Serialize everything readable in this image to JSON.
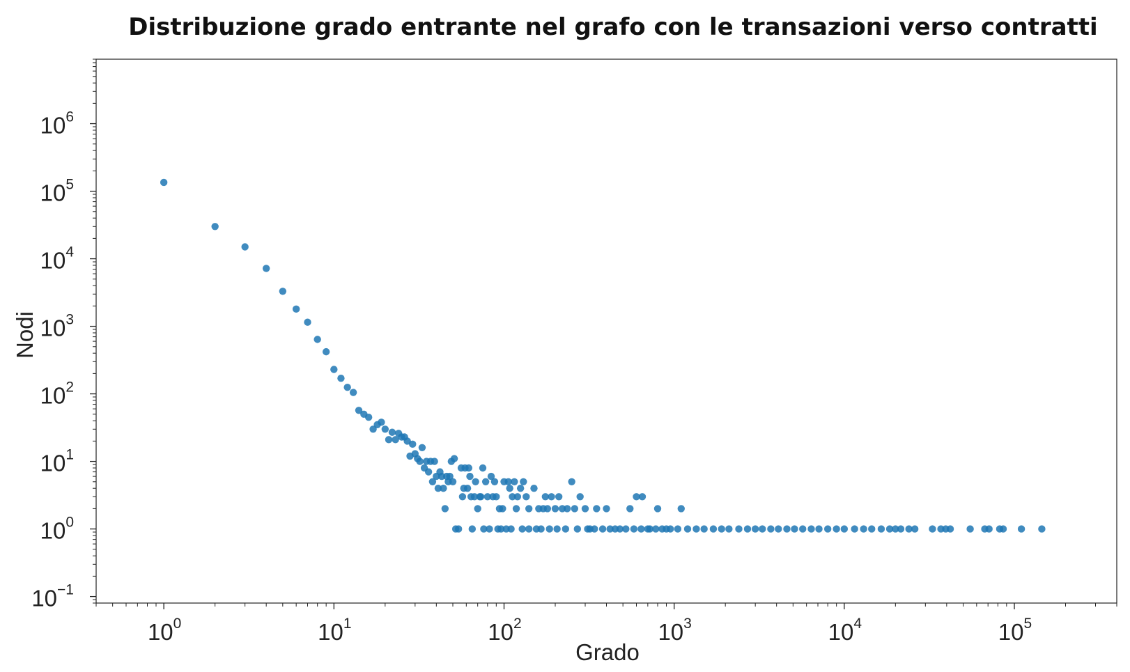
{
  "chart_data": {
    "type": "scatter",
    "title": "Distribuzione grado entrante nel grafo con le transazioni verso contratti",
    "xlabel": "Grado",
    "ylabel": "Nodi",
    "xscale": "log",
    "yscale": "log",
    "xlim": [
      0.4,
      400000
    ],
    "ylim": [
      0.08,
      9000000
    ],
    "xticks": [
      {
        "base": "10",
        "exp": "0",
        "value": 1
      },
      {
        "base": "10",
        "exp": "1",
        "value": 10
      },
      {
        "base": "10",
        "exp": "2",
        "value": 100
      },
      {
        "base": "10",
        "exp": "3",
        "value": 1000
      },
      {
        "base": "10",
        "exp": "4",
        "value": 10000
      },
      {
        "base": "10",
        "exp": "5",
        "value": 100000
      }
    ],
    "yticks": [
      {
        "base": "10",
        "exp": "−1",
        "value": 0.1
      },
      {
        "base": "10",
        "exp": "0",
        "value": 1
      },
      {
        "base": "10",
        "exp": "1",
        "value": 10
      },
      {
        "base": "10",
        "exp": "2",
        "value": 100
      },
      {
        "base": "10",
        "exp": "3",
        "value": 1000
      },
      {
        "base": "10",
        "exp": "4",
        "value": 10000
      },
      {
        "base": "10",
        "exp": "5",
        "value": 100000
      },
      {
        "base": "10",
        "exp": "6",
        "value": 1000000
      }
    ],
    "grid": false,
    "marker_color": "#1f77b4",
    "series": [
      {
        "points": [
          [
            1,
            135000
          ],
          [
            2,
            30000
          ],
          [
            3,
            15000
          ],
          [
            4,
            7200
          ],
          [
            5,
            3300
          ],
          [
            6,
            1800
          ],
          [
            7,
            1150
          ],
          [
            8,
            640
          ],
          [
            9,
            420
          ],
          [
            10,
            230
          ],
          [
            11,
            170
          ],
          [
            12,
            125
          ],
          [
            13,
            105
          ],
          [
            14,
            57
          ],
          [
            15,
            50
          ],
          [
            16,
            45
          ],
          [
            17,
            30
          ],
          [
            18,
            35
          ],
          [
            19,
            38
          ],
          [
            20,
            30
          ],
          [
            21,
            21
          ],
          [
            22,
            27
          ],
          [
            23,
            21
          ],
          [
            24,
            26
          ],
          [
            25,
            23
          ],
          [
            26,
            23
          ],
          [
            27,
            20
          ],
          [
            28,
            12
          ],
          [
            29,
            18
          ],
          [
            30,
            13
          ],
          [
            31,
            11
          ],
          [
            32,
            10
          ],
          [
            33,
            16
          ],
          [
            34,
            8
          ],
          [
            35,
            10
          ],
          [
            36,
            7
          ],
          [
            37,
            10
          ],
          [
            38,
            5
          ],
          [
            39,
            10
          ],
          [
            40,
            6
          ],
          [
            41,
            4
          ],
          [
            42,
            7
          ],
          [
            43,
            6
          ],
          [
            44,
            4
          ],
          [
            45,
            2
          ],
          [
            46,
            6
          ],
          [
            47,
            5
          ],
          [
            48,
            6
          ],
          [
            49,
            10
          ],
          [
            50,
            5
          ],
          [
            51,
            11
          ],
          [
            52,
            1
          ],
          [
            54,
            1
          ],
          [
            56,
            8
          ],
          [
            57,
            3
          ],
          [
            58,
            4
          ],
          [
            59,
            8
          ],
          [
            61,
            4
          ],
          [
            62,
            8
          ],
          [
            63,
            6
          ],
          [
            64,
            3
          ],
          [
            65,
            1
          ],
          [
            67,
            3
          ],
          [
            68,
            5
          ],
          [
            70,
            2
          ],
          [
            72,
            3
          ],
          [
            73,
            3
          ],
          [
            75,
            8
          ],
          [
            76,
            1
          ],
          [
            78,
            5
          ],
          [
            80,
            3
          ],
          [
            82,
            1
          ],
          [
            84,
            6
          ],
          [
            86,
            3
          ],
          [
            88,
            5
          ],
          [
            90,
            3
          ],
          [
            92,
            1
          ],
          [
            94,
            2
          ],
          [
            96,
            1
          ],
          [
            98,
            2
          ],
          [
            100,
            5
          ],
          [
            103,
            1
          ],
          [
            106,
            5
          ],
          [
            108,
            4
          ],
          [
            110,
            1
          ],
          [
            112,
            3
          ],
          [
            115,
            5
          ],
          [
            118,
            2
          ],
          [
            120,
            3
          ],
          [
            125,
            4
          ],
          [
            130,
            5
          ],
          [
            135,
            3
          ],
          [
            140,
            2
          ],
          [
            150,
            4
          ],
          [
            155,
            1
          ],
          [
            160,
            2
          ],
          [
            170,
            2
          ],
          [
            175,
            3
          ],
          [
            180,
            2
          ],
          [
            190,
            3
          ],
          [
            200,
            2
          ],
          [
            210,
            3
          ],
          [
            220,
            2
          ],
          [
            235,
            2
          ],
          [
            250,
            5
          ],
          [
            260,
            2
          ],
          [
            280,
            3
          ],
          [
            300,
            2
          ],
          [
            320,
            1
          ],
          [
            350,
            2
          ],
          [
            400,
            2
          ],
          [
            450,
            1
          ],
          [
            550,
            2
          ],
          [
            600,
            3
          ],
          [
            650,
            3
          ],
          [
            700,
            1
          ],
          [
            800,
            2
          ],
          [
            900,
            1
          ],
          [
            1100,
            2
          ],
          [
            128,
            1
          ],
          [
            140,
            1
          ],
          [
            165,
            1
          ],
          [
            185,
            1
          ],
          [
            205,
            1
          ],
          [
            230,
            1
          ],
          [
            270,
            1
          ],
          [
            310,
            1
          ],
          [
            340,
            1
          ],
          [
            380,
            1
          ],
          [
            420,
            1
          ],
          [
            480,
            1
          ],
          [
            520,
            1
          ],
          [
            580,
            1
          ],
          [
            640,
            1
          ],
          [
            720,
            1
          ],
          [
            780,
            1
          ],
          [
            850,
            1
          ],
          [
            950,
            1
          ],
          [
            1050,
            1
          ],
          [
            1200,
            1
          ],
          [
            1350,
            1
          ],
          [
            1500,
            1
          ],
          [
            1700,
            1
          ],
          [
            1900,
            1
          ],
          [
            2100,
            1
          ],
          [
            2400,
            1
          ],
          [
            2700,
            1
          ],
          [
            3000,
            1
          ],
          [
            3300,
            1
          ],
          [
            3700,
            1
          ],
          [
            4100,
            1
          ],
          [
            4600,
            1
          ],
          [
            5100,
            1
          ],
          [
            5700,
            1
          ],
          [
            6400,
            1
          ],
          [
            7100,
            1
          ],
          [
            8000,
            1
          ],
          [
            9000,
            1
          ],
          [
            10000,
            1
          ],
          [
            11500,
            1
          ],
          [
            13000,
            1
          ],
          [
            14500,
            1
          ],
          [
            16500,
            1
          ],
          [
            18500,
            1
          ],
          [
            20000,
            1
          ],
          [
            21500,
            1
          ],
          [
            24000,
            1
          ],
          [
            26000,
            1
          ],
          [
            33000,
            1
          ],
          [
            37000,
            1
          ],
          [
            39500,
            1
          ],
          [
            42000,
            1
          ],
          [
            55000,
            1
          ],
          [
            67000,
            1
          ],
          [
            71000,
            1
          ],
          [
            82000,
            1
          ],
          [
            86000,
            1
          ],
          [
            110000,
            1
          ],
          [
            145000,
            1
          ]
        ]
      }
    ]
  }
}
